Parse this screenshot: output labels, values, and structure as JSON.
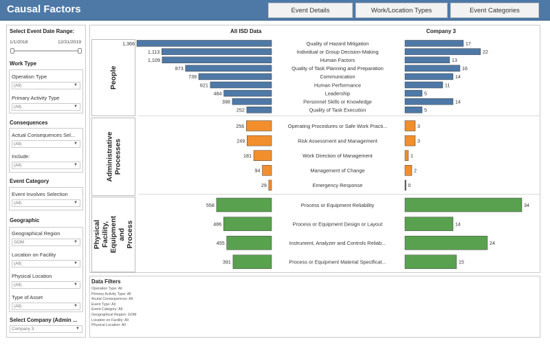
{
  "header": {
    "title": "Causal Factors",
    "tabs": [
      "Event Details",
      "Work/Location Types",
      "Event Categories"
    ]
  },
  "sidebar": {
    "date_range": {
      "label": "Select Event Date Range:",
      "start": "1/1/2018",
      "end": "12/31/2019"
    },
    "sections": [
      {
        "title": "Work Type",
        "fields": [
          {
            "label": "Operation Type",
            "value": "(All)"
          },
          {
            "label": "Primary Activity Type",
            "value": "(All)"
          }
        ]
      },
      {
        "title": "Consequences",
        "fields": [
          {
            "label": "Actual Consequences Sel...",
            "value": "(All)"
          },
          {
            "label": "Include:",
            "value": "(All)"
          }
        ]
      },
      {
        "title": "Event Category",
        "fields": [
          {
            "label": "Event Involves Selection",
            "value": "(All)"
          }
        ]
      },
      {
        "title": "Geographic",
        "fields": [
          {
            "label": "Geographical Region",
            "value": "GOM"
          },
          {
            "label": "Location on Facility",
            "value": "(All)"
          },
          {
            "label": "Physical Location",
            "value": "(All)"
          },
          {
            "label": "Type of Asset",
            "value": "(All)"
          }
        ]
      }
    ],
    "company": {
      "label": "Select Company (Admin ...",
      "value": "Company 3"
    }
  },
  "chart_data": {
    "type": "bar",
    "left_title": "All ISD Data",
    "right_title": "Company 3",
    "groups": [
      {
        "name": "People",
        "color": "#4e79a7",
        "categories": [
          "Quality of Hazard Mitigation",
          "Individual or Group Decision-Making",
          "Human Factors",
          "Quality of Task Planning and Preparation",
          "Communication",
          "Human Performance",
          "Leadership",
          "Personnel Skills or Knowledge",
          "Quality of Task Execution"
        ],
        "all_isd": [
          1366,
          1113,
          1109,
          873,
          739,
          621,
          484,
          398,
          252
        ],
        "company": [
          17,
          22,
          13,
          16,
          14,
          11,
          5,
          14,
          5
        ]
      },
      {
        "name": "Administrative Processes",
        "color": "#f28e2b",
        "categories": [
          "Operating Procedures or Safe Work Practi...",
          "Risk Assessment and Management",
          "Work Direction of Management",
          "Management of Change",
          "Emergency Response"
        ],
        "all_isd": [
          256,
          249,
          181,
          94,
          29
        ],
        "company": [
          3,
          3,
          1,
          2,
          0
        ]
      },
      {
        "name": "Physical Facility, Equipment and Process",
        "color": "#59a14f",
        "categories": [
          "Process or Equipment Reliability",
          "Process or Equipment Design or Layout",
          "Instrument, Analyzer and Controls Reliab...",
          "Process or Equipment Material Specificat..."
        ],
        "all_isd": [
          558,
          486,
          455,
          391
        ],
        "company": [
          34,
          14,
          24,
          15
        ]
      }
    ]
  },
  "data_filters": {
    "title": "Data Filters",
    "lines": [
      "Operation Type: All",
      "Primary Activity Type: All",
      "Acutal Consequences: All",
      "Event Type: All",
      "Event Category: All",
      "Geographical Region: GOM",
      "Location on Facility: All",
      "Physical Location: All"
    ]
  }
}
